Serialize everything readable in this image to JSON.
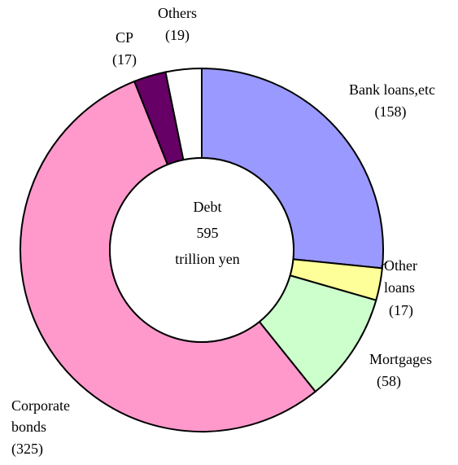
{
  "chart_data": {
    "type": "pie",
    "variant": "donut",
    "center_label": {
      "lines": [
        "Debt",
        "595",
        "trillion yen"
      ]
    },
    "total": 595,
    "unit": "trillion yen",
    "slices": [
      {
        "label_lines": [
          "Bank loans,etc",
          "(158)"
        ],
        "value": 158,
        "color": "#9999ff"
      },
      {
        "label_lines": [
          "Other",
          "loans",
          "(17)"
        ],
        "value": 17,
        "color": "#ffff99"
      },
      {
        "label_lines": [
          "Mortgages",
          "(58)"
        ],
        "value": 58,
        "color": "#ccffcc"
      },
      {
        "label_lines": [
          "Corporate",
          "bonds",
          "(325)"
        ],
        "value": 325,
        "color": "#ff99cc"
      },
      {
        "label_lines": [
          "CP",
          "(17)"
        ],
        "value": 17,
        "color": "#660066"
      },
      {
        "label_lines": [
          "Others",
          "(19)"
        ],
        "value": 19,
        "color": "#ffffff"
      }
    ],
    "start": "12 o'clock",
    "direction": "clockwise",
    "outline_color": "#000000",
    "legend": "none"
  }
}
